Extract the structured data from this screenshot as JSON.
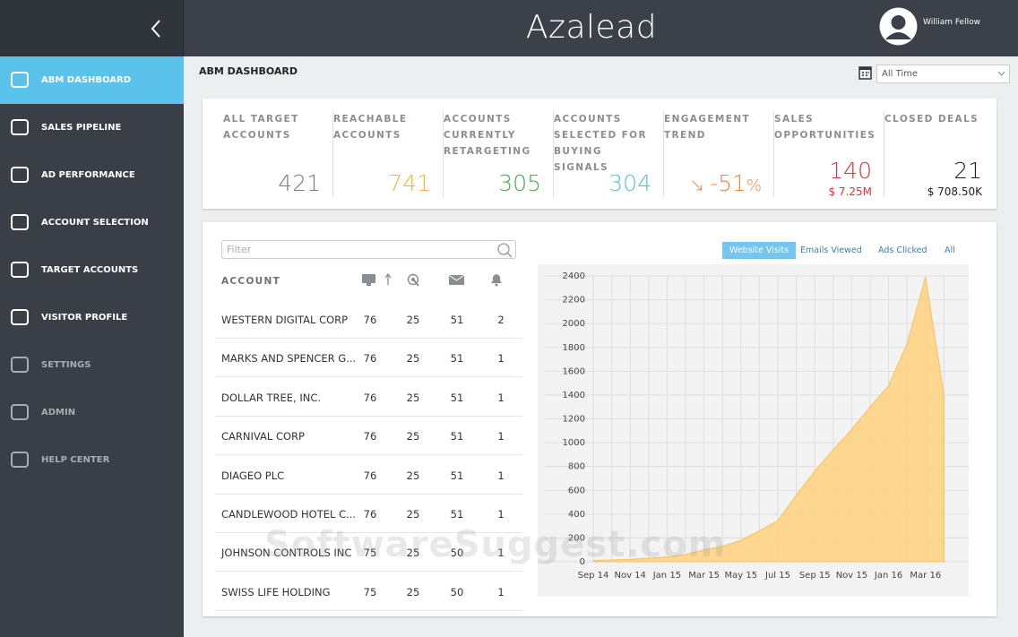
{
  "header": {
    "logo": "Azalead",
    "user": "William Fellow"
  },
  "nav": [
    "ABM DASHBOARD",
    "SALES PIPELINE",
    "AD PERFORMANCE",
    "ACCOUNT SELECTION",
    "TARGET ACCOUNTS",
    "VISITOR PROFILE",
    "SETTINGS",
    "ADMIN",
    "HELP CENTER"
  ],
  "page_title": "ABM DASHBOARD",
  "date_filter": "All Time",
  "kpis": [
    {
      "label": "ALL TARGET ACCOUNTS",
      "value": "421",
      "color": "#7a7d80"
    },
    {
      "label": "REACHABLE ACCOUNTS",
      "value": "741",
      "color": "#f3b52d"
    },
    {
      "label": "ACCOUNTS CURRENTLY RETARGETING",
      "value": "305",
      "color": "#3db24a"
    },
    {
      "label": "ACCOUNTS SELECTED FOR BUYING SIGNALS",
      "value": "304",
      "color": "#5bbfe0"
    },
    {
      "label": "ENGAGEMENT TREND",
      "value": "-51",
      "unit": "%",
      "color": "#f0873a"
    },
    {
      "label": "SALES OPPORTUNITIES",
      "value": "140",
      "sub": "$ 7.25M",
      "color": "#d6363a"
    },
    {
      "label": "CLOSED DEALS",
      "value": "21",
      "sub": "$ 708.50K",
      "color": "#222222"
    }
  ],
  "table": {
    "filter_placeholder": "Filter",
    "header": "ACCOUNT",
    "rows": [
      [
        "WESTERN DIGITAL CORP",
        "76",
        "25",
        "51",
        "2"
      ],
      [
        "MARKS AND SPENCER G...",
        "76",
        "25",
        "51",
        "1"
      ],
      [
        "DOLLAR TREE, INC.",
        "76",
        "25",
        "51",
        "1"
      ],
      [
        "CARNIVAL CORP",
        "76",
        "25",
        "51",
        "1"
      ],
      [
        "DIAGEO PLC",
        "76",
        "25",
        "51",
        "1"
      ],
      [
        "CANDLEWOOD HOTEL C...",
        "76",
        "25",
        "51",
        "1"
      ],
      [
        "JOHNSON CONTROLS INC",
        "75",
        "25",
        "50",
        "1"
      ],
      [
        "SWISS LIFE HOLDING",
        "75",
        "25",
        "50",
        "1"
      ]
    ]
  },
  "chart_tabs": [
    "Emails Viewed",
    "Ads Clicked",
    "All"
  ],
  "chart_data": {
    "type": "area",
    "categories": [
      "Sep 14",
      null,
      "Nov 14",
      null,
      "Jan 15",
      null,
      "Mar 15",
      null,
      "May 15",
      null,
      "Jul 15",
      null,
      "Sep 15",
      null,
      "Nov 15",
      null,
      "Jan 16",
      null,
      "Mar 16",
      null
    ],
    "series": [
      {
        "name": "Website Visits",
        "color": "#fdd48a",
        "values": [
          10,
          15,
          20,
          30,
          40,
          60,
          100,
          130,
          180,
          260,
          345,
          560,
          760,
          940,
          1110,
          1300,
          1480,
          1830,
          2390,
          1400
        ]
      }
    ],
    "ylim": [
      0,
      2400
    ],
    "yticks": [
      0,
      200,
      400,
      600,
      800,
      1000,
      1200,
      1400,
      1600,
      1800,
      2000,
      2200,
      2400
    ],
    "grid": true
  },
  "watermark": "SoftwareSuggest.com"
}
